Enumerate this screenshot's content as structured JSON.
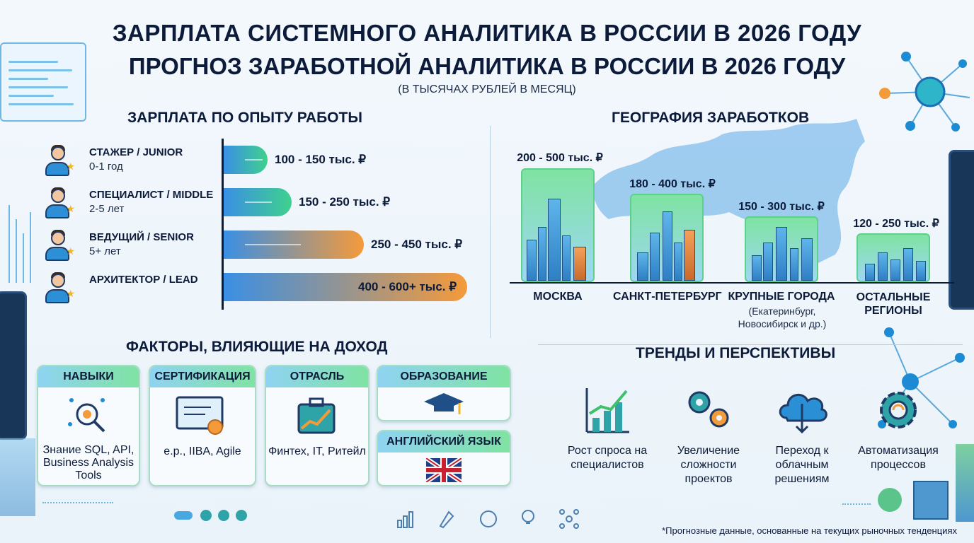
{
  "header": {
    "title": "ЗАРПЛАТА СИСТЕМНОГО АНАЛИТИКА В РОССИИ В 2026 ГОДУ",
    "title2": "ПРОГНОЗ ЗАРАБОТНОЙ АНАЛИТИКА В РОССИИ В 2026 ГОДУ",
    "subtitle": "(В ТЫСЯЧАХ РУБЛЕЙ В МЕСЯЦ)"
  },
  "experience": {
    "heading": "ЗАРПЛАТА ПО ОПЫТУ РАБОТЫ",
    "levels": [
      {
        "title": "СТАЖЕР / JUNIOR",
        "years": "0-1 год",
        "salary": "100 - 150 тыс. ₽",
        "min": 100,
        "max": 150
      },
      {
        "title": "СПЕЦИАЛИСТ / MIDDLE",
        "years": "2-5 лет",
        "salary": "150 - 250 тыс. ₽",
        "min": 150,
        "max": 250
      },
      {
        "title": "ВЕДУЩИЙ / SENIOR",
        "years": "5+ лет",
        "salary": "250 - 450 тыс. ₽",
        "min": 250,
        "max": 450
      },
      {
        "title": "АРХИТЕКТОР / LEAD",
        "years": "",
        "salary": "400 - 600+ тыс. ₽",
        "min": 400,
        "max": 600
      }
    ]
  },
  "geography": {
    "heading": "ГЕОГРАФИЯ ЗАРАБОТКОВ",
    "cities": [
      {
        "name": "МОСКВА",
        "sub": "",
        "salary": "200 - 500 тыс. ₽"
      },
      {
        "name": "САНКТ-ПЕТЕРБУРГ",
        "sub": "",
        "salary": "180 - 400 тыс. ₽"
      },
      {
        "name": "КРУПНЫЕ ГОРОДА",
        "sub": "(Екатеринбург, Новосибирск и др.)",
        "salary": "150 - 300 тыс. ₽"
      },
      {
        "name": "ОСТАЛЬНЫЕ РЕГИОНЫ",
        "sub": "",
        "salary": "120 - 250 тыс. ₽"
      }
    ]
  },
  "factors": {
    "heading": "ФАКТОРЫ, ВЛИЯЮЩИЕ НА ДОХОД",
    "items": [
      {
        "title": "НАВЫКИ",
        "text": "Знание SQL, API, Business Analysis Tools",
        "icon": "skills-gear-icon"
      },
      {
        "title": "СЕРТИФИКАЦИЯ",
        "text": "e.p., IIBA, Agile",
        "icon": "certificate-icon"
      },
      {
        "title": "ОТРАСЛЬ",
        "text": "Финтех, IT, Ритейл",
        "icon": "briefcase-chart-icon"
      },
      {
        "title": "ОБРАЗОВАНИЕ",
        "text": "",
        "icon": "graduation-cap-icon"
      },
      {
        "title": "АНГЛИЙСКИЙ ЯЗЫК",
        "text": "",
        "icon": "uk-flag-icon"
      }
    ]
  },
  "trends": {
    "heading": "ТРЕНДЫ И ПЕРСПЕКТИВЫ",
    "items": [
      {
        "text": "Рост спроса на специалистов",
        "icon": "growth-chart-icon"
      },
      {
        "text": "Увеличение сложности проектов",
        "icon": "gears-icon"
      },
      {
        "text": "Переход к облачным решениям",
        "icon": "cloud-icon"
      },
      {
        "text": "Автоматизация процессов",
        "icon": "automation-gear-icon"
      }
    ]
  },
  "footnote": "*Прогнозные данные, основанные на текущих рыночных тенденциях",
  "colors": {
    "navy": "#0c1b3a",
    "blue": "#2f8fe0",
    "green": "#5dd08c",
    "orange": "#f59a3a"
  }
}
